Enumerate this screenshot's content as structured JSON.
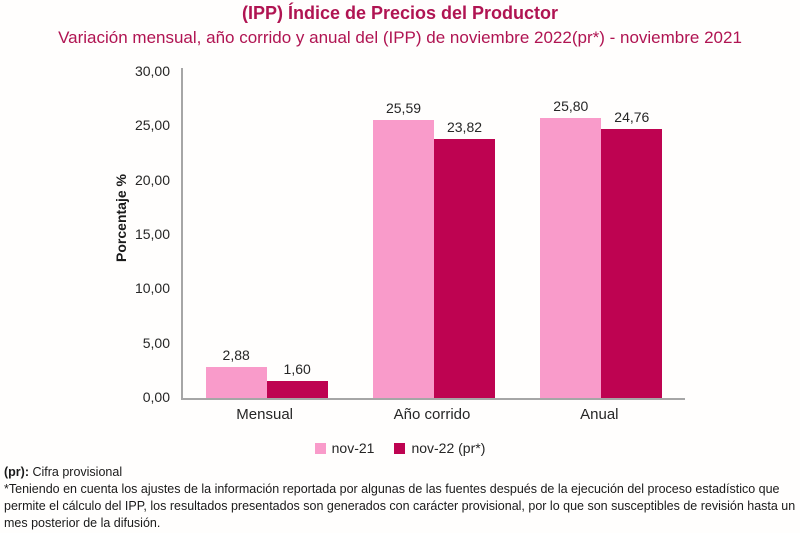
{
  "header": {
    "title": "(IPP) Índice de Precios del Productor",
    "subtitle": "Variación mensual, año corrido y anual del (IPP) de noviembre 2022(pr*) - noviembre 2021"
  },
  "chart_data": {
    "type": "bar",
    "title": "(IPP) Índice de Precios del Productor",
    "subtitle": "Variación mensual, año corrido y anual del (IPP) de noviembre 2022(pr*) - noviembre 2021",
    "categories": [
      "Mensual",
      "Año corrido",
      "Anual"
    ],
    "series": [
      {
        "name": "nov-21",
        "color": "#f99bca",
        "values": [
          2.88,
          25.59,
          25.8
        ]
      },
      {
        "name": "nov-22 (pr*)",
        "color": "#be0351",
        "values": [
          1.6,
          23.82,
          24.76
        ]
      }
    ],
    "xlabel": "",
    "ylabel": "Porcentaje %",
    "ylim": [
      0,
      30
    ],
    "ytick_step": 5,
    "ytick_labels": [
      "30,00",
      "25,00",
      "20,00",
      "15,00",
      "10,00",
      "5,00",
      "0,00"
    ],
    "decimal_separator": ",",
    "grid": false,
    "legend_position": "bottom",
    "axis_color": "#a6a6a6"
  },
  "footnotes": {
    "provisional_label": "(pr):",
    "provisional_text": " Cifra provisional",
    "disclaimer": "*Teniendo en cuenta los ajustes de la información reportada por algunas de las fuentes después de la ejecución del proceso estadístico que permite el cálculo del IPP, los resultados presentados son generados con carácter provisional, por lo que son susceptibles de revisión hasta un mes posterior de la difusión."
  },
  "colors": {
    "title": "#b01452",
    "series_light": "#f99bca",
    "series_dark": "#be0351",
    "axis": "#a6a6a6",
    "text": "#262626"
  }
}
